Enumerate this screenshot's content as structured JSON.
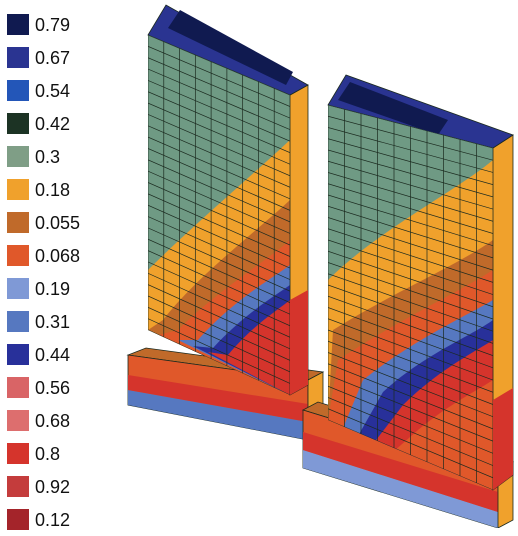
{
  "legend": {
    "items": [
      {
        "label": "0.79",
        "color": "#101a50"
      },
      {
        "label": "0.67",
        "color": "#2a3491"
      },
      {
        "label": "0.54",
        "color": "#2356b8"
      },
      {
        "label": "0.42",
        "color": "#1c3324"
      },
      {
        "label": "0.3",
        "color": "#7f9e86"
      },
      {
        "label": "0.18",
        "color": "#f0a12c"
      },
      {
        "label": "0.055",
        "color": "#c06a2a"
      },
      {
        "label": "0.068",
        "color": "#e0582a"
      },
      {
        "label": "0.19",
        "color": "#7f99d6"
      },
      {
        "label": "0.31",
        "color": "#5678c0"
      },
      {
        "label": "0.44",
        "color": "#28309a"
      },
      {
        "label": "0.56",
        "color": "#d96466"
      },
      {
        "label": "0.68",
        "color": "#dd6e6e"
      },
      {
        "label": "0.8",
        "color": "#d5342c"
      },
      {
        "label": "0.92",
        "color": "#c43c3c"
      },
      {
        "label": "0.12",
        "color": "#a4242a"
      }
    ]
  },
  "model": {
    "wall_top_color": "#101a50",
    "wall_cap_color": "#2a3491",
    "face_base_color": "#6f9a84",
    "contour_bands": [
      "#f0a12c",
      "#c06a2a",
      "#e0582a",
      "#5678c0",
      "#28309a",
      "#d5342c"
    ],
    "footing_colors": [
      "#e0582a",
      "#f0a12c",
      "#d5342c",
      "#5678c0"
    ],
    "grid_color": "#1b2a1f"
  }
}
